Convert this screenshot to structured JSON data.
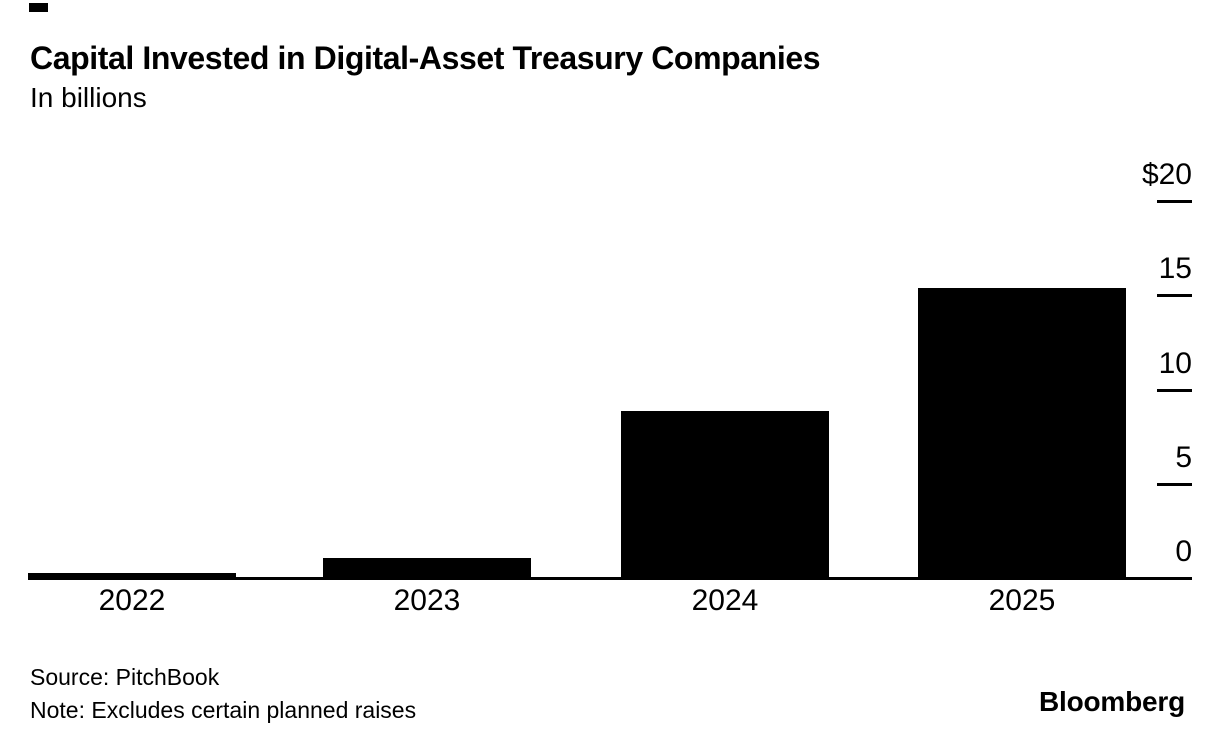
{
  "header": {
    "title": "Capital Invested in Digital-Asset Treasury Companies",
    "subtitle": "In billions"
  },
  "footer": {
    "source": "Source: PitchBook",
    "note": "Note: Excludes certain planned raises",
    "brand": "Bloomberg"
  },
  "colors": {
    "bar": "#000000",
    "text": "#000000",
    "axis": "#000000",
    "background": "#ffffff"
  },
  "chart_data": {
    "type": "bar",
    "title": "Capital Invested in Digital-Asset Treasury Companies",
    "subtitle": "In billions",
    "categories": [
      "2022",
      "2023",
      "2024",
      "2025"
    ],
    "values": [
      0.3,
      1.1,
      8.9,
      15.4
    ],
    "xlabel": "",
    "ylabel": "",
    "ylim": [
      0,
      20
    ],
    "y_axis_side": "right",
    "grid": false,
    "legend": false,
    "y_ticks": [
      {
        "value": 20,
        "label": "$20"
      },
      {
        "value": 15,
        "label": "15"
      },
      {
        "value": 10,
        "label": "10"
      },
      {
        "value": 5,
        "label": "5"
      },
      {
        "value": 0,
        "label": "0"
      }
    ]
  }
}
